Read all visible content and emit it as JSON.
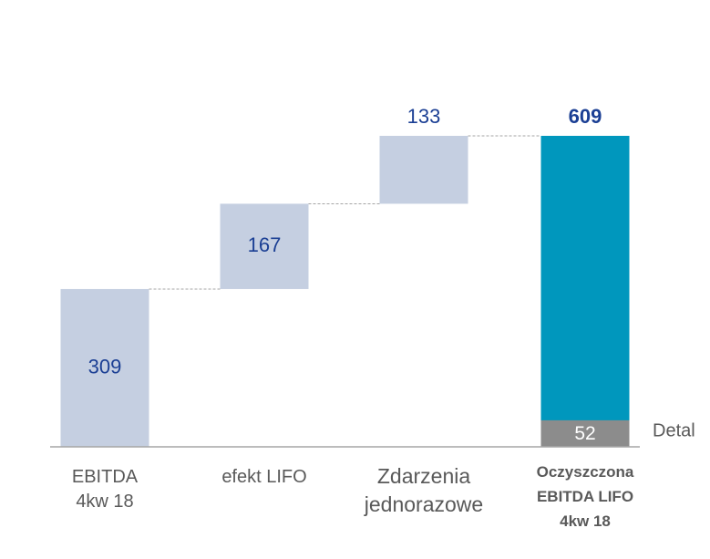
{
  "chart_data": {
    "type": "waterfall",
    "categories": [
      "EBITDA\n4kw 18",
      "efekt LIFO",
      "Zdarzenia\njednorazowe"
    ],
    "values": [
      309,
      167,
      133
    ],
    "color": "#c5cfe1",
    "total": {
      "category": "Oczyszczona\nEBITDA LIFO\n4kw 18",
      "value": 609,
      "color": "#0097bd",
      "segment": {
        "name": "Detal",
        "value": 52,
        "color": "#8c8c8c"
      }
    },
    "ylim": [
      0,
      650
    ]
  }
}
